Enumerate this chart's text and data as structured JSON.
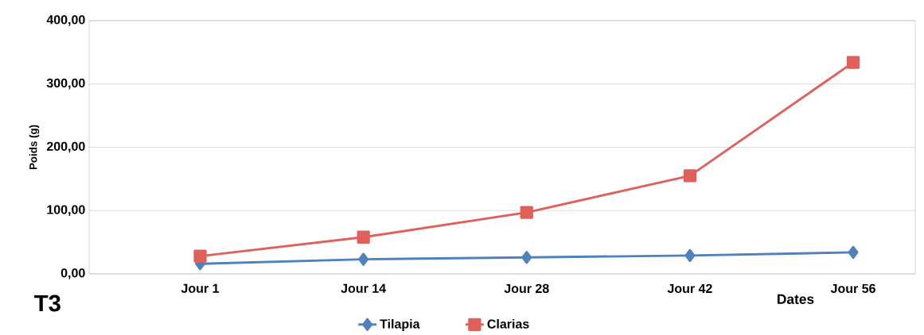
{
  "chart_data": {
    "type": "line",
    "title": "T3",
    "xlabel": "Dates",
    "ylabel": "Poids (g)",
    "categories": [
      "Jour 1",
      "Jour 14",
      "Jour 28",
      "Jour 42",
      "Jour 56"
    ],
    "series": [
      {
        "name": "Tilapia",
        "color": "#4f81bd",
        "marker": "diamond",
        "values": [
          16,
          23,
          26,
          29,
          34
        ]
      },
      {
        "name": "Clarias",
        "color": "#e0605a",
        "marker": "square",
        "values": [
          28,
          58,
          97,
          155,
          334
        ]
      }
    ],
    "ylim": [
      0,
      400
    ],
    "yticks": [
      {
        "value": 0,
        "label": "0,00"
      },
      {
        "value": 100,
        "label": "100,00"
      },
      {
        "value": 200,
        "label": "200,00"
      },
      {
        "value": 300,
        "label": "300,00"
      },
      {
        "value": 400,
        "label": "400,00"
      }
    ],
    "grid": "y",
    "legend": "bottom"
  }
}
